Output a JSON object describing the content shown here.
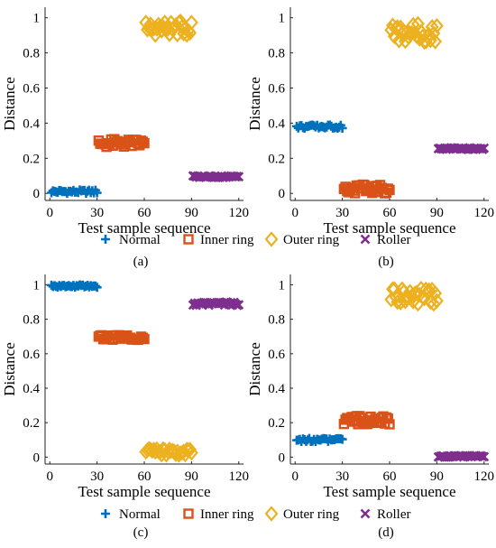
{
  "legend": {
    "items": [
      {
        "label": "Normal",
        "marker": "plus",
        "color": "#0072BD"
      },
      {
        "label": "Inner ring",
        "marker": "square",
        "color": "#D95319"
      },
      {
        "label": "Outer ring",
        "marker": "diamond",
        "color": "#EDB120"
      },
      {
        "label": "Roller",
        "marker": "x",
        "color": "#7E2F8E"
      }
    ]
  },
  "chart_data": [
    {
      "type": "scatter",
      "panel_label": "(a)",
      "xlabel": "Test sample sequence",
      "ylabel": "Distance",
      "xlim": [
        -3,
        123
      ],
      "ylim": [
        -0.04,
        1.06
      ],
      "xticks": [
        0,
        30,
        60,
        90,
        120
      ],
      "yticks": [
        0,
        0.2,
        0.4,
        0.6,
        0.8,
        1
      ],
      "series": [
        {
          "name": "Normal",
          "x_range": [
            1,
            30
          ],
          "y_range": [
            0.0,
            0.02
          ]
        },
        {
          "name": "Inner ring",
          "x_range": [
            31,
            60
          ],
          "y_range": [
            0.26,
            0.31
          ]
        },
        {
          "name": "Outer ring",
          "x_range": [
            61,
            90
          ],
          "y_range": [
            0.9,
            0.98
          ]
        },
        {
          "name": "Roller",
          "x_range": [
            91,
            120
          ],
          "y_range": [
            0.09,
            0.1
          ]
        }
      ]
    },
    {
      "type": "scatter",
      "panel_label": "(b)",
      "xlabel": "Test sample sequence",
      "ylabel": "Distance",
      "xlim": [
        -3,
        123
      ],
      "ylim": [
        -0.04,
        1.06
      ],
      "xticks": [
        0,
        30,
        60,
        90,
        120
      ],
      "yticks": [
        0,
        0.2,
        0.4,
        0.6,
        0.8,
        1
      ],
      "series": [
        {
          "name": "Normal",
          "x_range": [
            1,
            30
          ],
          "y_range": [
            0.37,
            0.39
          ]
        },
        {
          "name": "Inner ring",
          "x_range": [
            31,
            60
          ],
          "y_range": [
            0.0,
            0.05
          ]
        },
        {
          "name": "Outer ring",
          "x_range": [
            61,
            90
          ],
          "y_range": [
            0.86,
            0.97
          ]
        },
        {
          "name": "Roller",
          "x_range": [
            91,
            120
          ],
          "y_range": [
            0.25,
            0.26
          ]
        }
      ]
    },
    {
      "type": "scatter",
      "panel_label": "(c)",
      "xlabel": "Test sample sequence",
      "ylabel": "Distance",
      "xlim": [
        -3,
        123
      ],
      "ylim": [
        -0.04,
        1.06
      ],
      "xticks": [
        0,
        30,
        60,
        90,
        120
      ],
      "yticks": [
        0,
        0.2,
        0.4,
        0.6,
        0.8,
        1
      ],
      "series": [
        {
          "name": "Normal",
          "x_range": [
            1,
            30
          ],
          "y_range": [
            0.985,
            1.0
          ]
        },
        {
          "name": "Inner ring",
          "x_range": [
            31,
            60
          ],
          "y_range": [
            0.68,
            0.71
          ]
        },
        {
          "name": "Outer ring",
          "x_range": [
            61,
            90
          ],
          "y_range": [
            0.01,
            0.05
          ]
        },
        {
          "name": "Roller",
          "x_range": [
            91,
            120
          ],
          "y_range": [
            0.88,
            0.9
          ]
        }
      ]
    },
    {
      "type": "scatter",
      "panel_label": "(d)",
      "xlabel": "Test sample sequence",
      "ylabel": "Distance",
      "xlim": [
        -3,
        123
      ],
      "ylim": [
        -0.04,
        1.06
      ],
      "xticks": [
        0,
        30,
        60,
        90,
        120
      ],
      "yticks": [
        0,
        0.2,
        0.4,
        0.6,
        0.8,
        1
      ],
      "series": [
        {
          "name": "Normal",
          "x_range": [
            1,
            30
          ],
          "y_range": [
            0.09,
            0.11
          ]
        },
        {
          "name": "Inner ring",
          "x_range": [
            31,
            60
          ],
          "y_range": [
            0.19,
            0.24
          ]
        },
        {
          "name": "Outer ring",
          "x_range": [
            61,
            90
          ],
          "y_range": [
            0.88,
            0.98
          ]
        },
        {
          "name": "Roller",
          "x_range": [
            91,
            120
          ],
          "y_range": [
            0.0,
            0.01
          ]
        }
      ]
    }
  ]
}
